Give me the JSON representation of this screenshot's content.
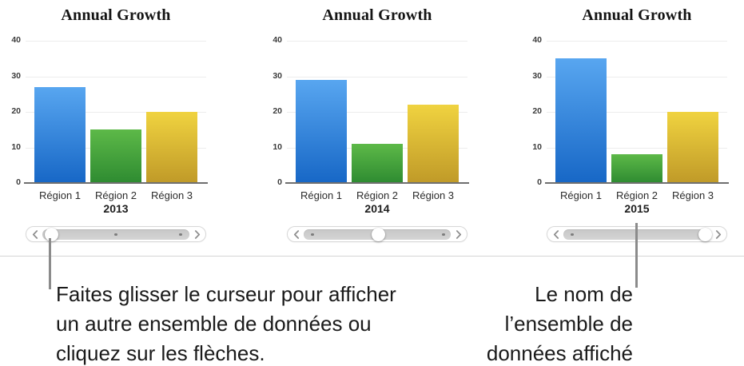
{
  "figure": {
    "description_language": "fr",
    "background": "#ffffff"
  },
  "chart_data": [
    {
      "type": "bar",
      "title": "Annual Growth",
      "dataset_label": "2013",
      "categories": [
        "Région 1",
        "Région 2",
        "Région 3"
      ],
      "values": [
        27,
        15,
        20
      ],
      "ylim": [
        0,
        40
      ],
      "yticks": [
        0,
        10,
        20,
        30,
        40
      ],
      "grid": true,
      "legend": false,
      "slider": {
        "thumb_fraction": 0.02,
        "dot_fractions": [
          0.5,
          0.94
        ]
      }
    },
    {
      "type": "bar",
      "title": "Annual Growth",
      "dataset_label": "2014",
      "categories": [
        "Région 1",
        "Région 2",
        "Région 3"
      ],
      "values": [
        29,
        11,
        22
      ],
      "ylim": [
        0,
        40
      ],
      "yticks": [
        0,
        10,
        20,
        30,
        40
      ],
      "grid": true,
      "legend": false,
      "slider": {
        "thumb_fraction": 0.5,
        "dot_fractions": [
          0.06,
          0.95
        ]
      }
    },
    {
      "type": "bar",
      "title": "Annual Growth",
      "dataset_label": "2015",
      "categories": [
        "Région 1",
        "Région 2",
        "Région 3"
      ],
      "values": [
        35,
        8,
        20
      ],
      "ylim": [
        0,
        40
      ],
      "yticks": [
        0,
        10,
        20,
        30,
        40
      ],
      "grid": true,
      "legend": false,
      "slider": {
        "thumb_fraction": 1.0,
        "dot_fractions": [
          0.06
        ]
      }
    }
  ],
  "colors": {
    "bar_gradients": [
      {
        "name": "blue",
        "top": "#58a6f0",
        "bottom": "#1767c6"
      },
      {
        "name": "green",
        "top": "#5db948",
        "bottom": "#2e8b31"
      },
      {
        "name": "yellow",
        "top": "#f0d340",
        "bottom": "#c09a28"
      }
    ],
    "gridline": "#ededed",
    "axis_line": "#6f6f6f",
    "slider_border": "#d8d8d8",
    "slider_track_top": "#c7c7c7",
    "slider_track_bottom": "#d4d4d4",
    "chevron": "#8d8d8d",
    "divider": "#d4d4d4",
    "callout": "#8b8b8b"
  },
  "icons": {
    "slider_left": "chevron-left-icon",
    "slider_right": "chevron-right-icon"
  },
  "annotations": {
    "left_lines": [
      "Faites glisser le curseur pour afficher",
      "un autre ensemble de données ou",
      "cliquez sur les flèches."
    ],
    "right_lines": [
      "Le nom de",
      "l’ensemble de",
      "données affiché"
    ]
  }
}
